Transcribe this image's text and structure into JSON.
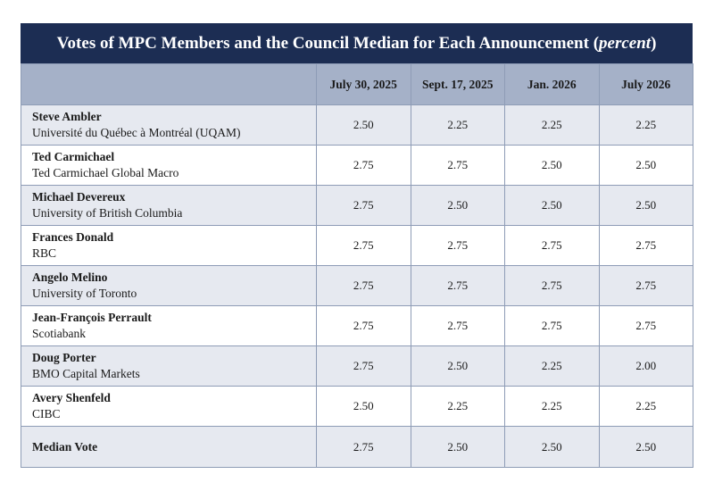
{
  "title": {
    "main": "Votes of MPC Members and the Council Median for Each Announcement",
    "unit": "percent"
  },
  "columns": [
    "July 30, 2025",
    "Sept. 17, 2025",
    "Jan. 2026",
    "July 2026"
  ],
  "rows": [
    {
      "name": "Steve Ambler",
      "org": "Université du Québec à Montréal (UQAM)",
      "values": [
        "2.50",
        "2.25",
        "2.25",
        "2.25"
      ]
    },
    {
      "name": "Ted Carmichael",
      "org": "Ted Carmichael Global Macro",
      "values": [
        "2.75",
        "2.75",
        "2.50",
        "2.50"
      ]
    },
    {
      "name": "Michael Devereux",
      "org": "University of British Columbia",
      "values": [
        "2.75",
        "2.50",
        "2.50",
        "2.50"
      ]
    },
    {
      "name": "Frances Donald",
      "org": "RBC",
      "values": [
        "2.75",
        "2.75",
        "2.75",
        "2.75"
      ]
    },
    {
      "name": "Angelo Melino",
      "org": "University of Toronto",
      "values": [
        "2.75",
        "2.75",
        "2.75",
        "2.75"
      ]
    },
    {
      "name": "Jean-François Perrault",
      "org": "Scotiabank",
      "values": [
        "2.75",
        "2.75",
        "2.75",
        "2.75"
      ]
    },
    {
      "name": "Doug Porter",
      "org": "BMO Capital Markets",
      "values": [
        "2.75",
        "2.50",
        "2.25",
        "2.00"
      ]
    },
    {
      "name": "Avery Shenfeld",
      "org": "CIBC",
      "values": [
        "2.50",
        "2.25",
        "2.25",
        "2.25"
      ]
    }
  ],
  "median": {
    "label": "Median Vote",
    "values": [
      "2.75",
      "2.50",
      "2.50",
      "2.50"
    ]
  }
}
